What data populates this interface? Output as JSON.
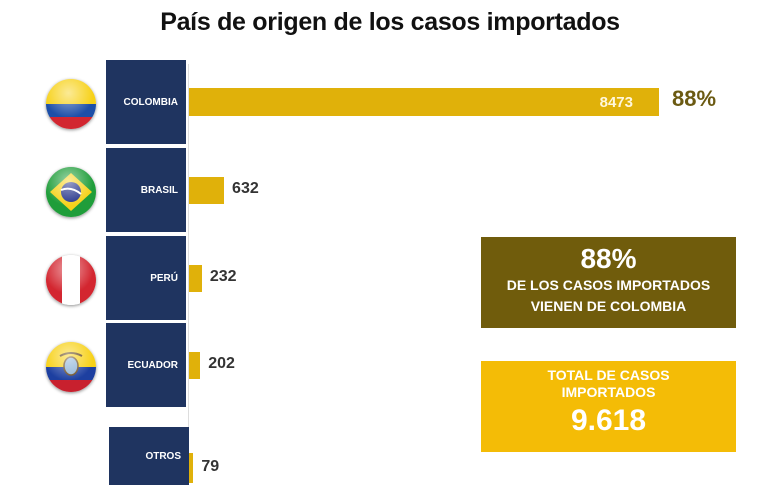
{
  "chart_data": {
    "type": "bar",
    "orientation": "horizontal",
    "title": "País de origen de los casos importados",
    "categories": [
      "COLOMBIA",
      "BRASIL",
      "PERÚ",
      "ECUADOR",
      "OTROS"
    ],
    "values": [
      8473,
      632,
      232,
      202,
      79
    ],
    "value_labels": [
      "8473",
      "632",
      "232",
      "202",
      "79"
    ],
    "annotations": {
      "colombia_share": "88%"
    },
    "flags": [
      "colombia-flag",
      "brazil-flag",
      "peru-flag",
      "ecuador-flag",
      null
    ],
    "xlabel": "",
    "ylabel": "",
    "grid": false,
    "xlim": [
      0,
      8473
    ]
  },
  "callouts": {
    "share": {
      "value": "88%",
      "line1": "DE LOS CASOS IMPORTADOS",
      "line2": "VIENEN DE COLOMBIA"
    },
    "total": {
      "line1": "TOTAL DE CASOS",
      "line2": "IMPORTADOS",
      "value": "9.618"
    }
  },
  "colors": {
    "bar": "#e0b10a",
    "label_box": "#1f3460",
    "share_box": "#705c0c",
    "total_box": "#f4bc06",
    "pct_text": "#6b5a12"
  }
}
